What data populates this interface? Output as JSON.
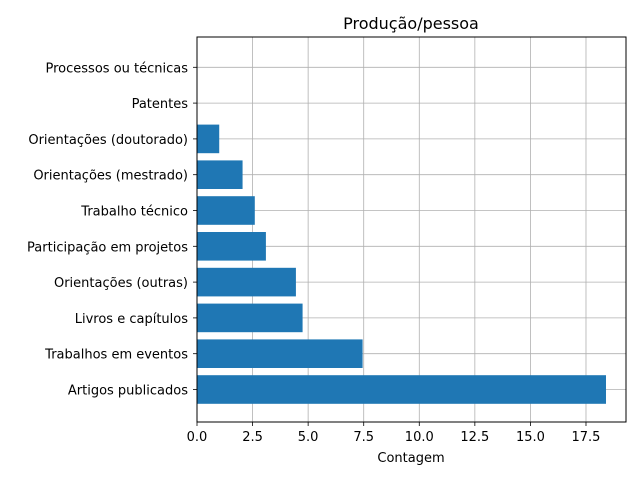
{
  "chart_data": {
    "type": "bar",
    "orientation": "horizontal",
    "title": "Produção/pessoa",
    "xlabel": "Contagem",
    "ylabel": "",
    "categories": [
      "Artigos publicados",
      "Trabalhos em eventos",
      "Livros e capítulos",
      "Orientações (outras)",
      "Participação em projetos",
      "Trabalho técnico",
      "Orientações (mestrado)",
      "Orientações (doutorado)",
      "Patentes",
      "Processos ou técnicas"
    ],
    "values": [
      18.4,
      7.45,
      4.75,
      4.45,
      3.1,
      2.6,
      2.05,
      1.0,
      0,
      0
    ],
    "xlim": [
      0,
      19.3
    ],
    "xticks": [
      "0.0",
      "2.5",
      "5.0",
      "7.5",
      "10.0",
      "12.5",
      "15.0",
      "17.5"
    ],
    "xtick_values": [
      0,
      2.5,
      5,
      7.5,
      10,
      12.5,
      15,
      17.5
    ],
    "grid": true,
    "bar_color": "#1f77b4"
  }
}
